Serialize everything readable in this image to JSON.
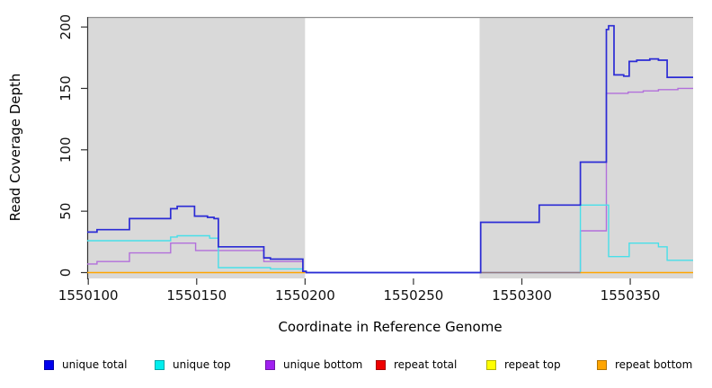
{
  "chart_data": {
    "type": "line",
    "line_style": "step-after",
    "title": "",
    "xlabel": "Coordinate in Reference Genome",
    "ylabel": "Read Coverage Depth",
    "xlim": [
      1550099.5,
      1550379
    ],
    "ylim": [
      0,
      200
    ],
    "x_ticks": [
      1550100,
      1550150,
      1550200,
      1550250,
      1550300,
      1550350
    ],
    "y_ticks": [
      0,
      50,
      100,
      150,
      200
    ],
    "grid": false,
    "legend_position": "bottom",
    "plot_background": "#FFFFFF",
    "shaded_region_color": "#D9D9D9",
    "shaded_regions": [
      {
        "from": 1550099.5,
        "to": 1550200
      },
      {
        "from": 1550280.5,
        "to": 1550379
      }
    ],
    "series": [
      {
        "name": "unique total",
        "color": "#2B2BD5",
        "points": [
          [
            1550099.5,
            33
          ],
          [
            1550104,
            35
          ],
          [
            1550119,
            44
          ],
          [
            1550138,
            52
          ],
          [
            1550141,
            54
          ],
          [
            1550149,
            46
          ],
          [
            1550155,
            45
          ],
          [
            1550158,
            44
          ],
          [
            1550160,
            21
          ],
          [
            1550181,
            12
          ],
          [
            1550184,
            11
          ],
          [
            1550199,
            1
          ],
          [
            1550200.5,
            0
          ],
          [
            1550281,
            41
          ],
          [
            1550308,
            55
          ],
          [
            1550327,
            90
          ],
          [
            1550339,
            198
          ],
          [
            1550340,
            201
          ],
          [
            1550342.5,
            161
          ],
          [
            1550347,
            160
          ],
          [
            1550349.5,
            172
          ],
          [
            1550353,
            173
          ],
          [
            1550359,
            174
          ],
          [
            1550363,
            173
          ],
          [
            1550367,
            159
          ],
          [
            1550379,
            159
          ]
        ]
      },
      {
        "name": "unique top",
        "color": "#48DFE9",
        "points": [
          [
            1550099.5,
            26
          ],
          [
            1550138,
            29
          ],
          [
            1550141,
            30
          ],
          [
            1550156,
            28
          ],
          [
            1550160,
            4
          ],
          [
            1550184,
            3
          ],
          [
            1550199,
            1
          ],
          [
            1550200.5,
            0
          ],
          [
            1550327,
            55
          ],
          [
            1550340,
            13
          ],
          [
            1550349.5,
            24
          ],
          [
            1550363,
            21
          ],
          [
            1550367,
            10
          ],
          [
            1550379,
            10
          ]
        ]
      },
      {
        "name": "unique bottom",
        "color": "#B26FDB",
        "points": [
          [
            1550099.5,
            7
          ],
          [
            1550104,
            9
          ],
          [
            1550119,
            16
          ],
          [
            1550138,
            24
          ],
          [
            1550149.5,
            18
          ],
          [
            1550181,
            9
          ],
          [
            1550199,
            0.5
          ],
          [
            1550200.5,
            0
          ],
          [
            1550327,
            34
          ],
          [
            1550339,
            146
          ],
          [
            1550349,
            147
          ],
          [
            1550356,
            148
          ],
          [
            1550363,
            149
          ],
          [
            1550372,
            150
          ],
          [
            1550379,
            150
          ]
        ]
      },
      {
        "name": "repeat total",
        "color": "#EE0000",
        "points": [
          [
            1550099.5,
            0
          ],
          [
            1550379,
            0
          ]
        ],
        "visible_zero_segments": [
          [
            1550280.5,
            1550327
          ]
        ],
        "zero_opacity": 0.45
      },
      {
        "name": "repeat top",
        "color": "#FFFF00",
        "points": [
          [
            1550099.5,
            0
          ],
          [
            1550379,
            0
          ]
        ],
        "visible_zero_segments": []
      },
      {
        "name": "repeat bottom",
        "color": "#FFA500",
        "points": [
          [
            1550099.5,
            0
          ],
          [
            1550379,
            0
          ]
        ],
        "visible_zero_segments": [
          [
            1550099.5,
            1550200
          ],
          [
            1550327,
            1550379
          ]
        ]
      }
    ]
  },
  "legend": {
    "items": [
      {
        "label": "unique total",
        "swatch": "#0000EE"
      },
      {
        "label": "unique top",
        "swatch": "#00EEEE"
      },
      {
        "label": "unique bottom",
        "swatch": "#A020F0"
      },
      {
        "label": "repeat total",
        "swatch": "#EE0000"
      },
      {
        "label": "repeat top",
        "swatch": "#FFFF00"
      },
      {
        "label": "repeat bottom",
        "swatch": "#FFA500"
      }
    ]
  }
}
